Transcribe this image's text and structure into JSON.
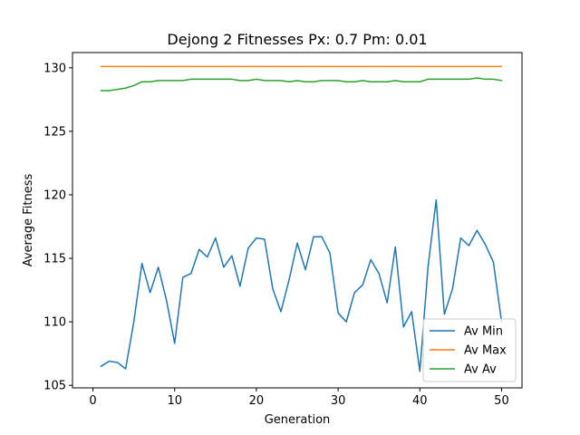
{
  "chart_data": {
    "type": "line",
    "title": "Dejong 2 Fitnesses Px: 0.7 Pm: 0.01",
    "xlabel": "Generation",
    "ylabel": "Average Fitness",
    "xlim": [
      -2.5,
      52.5
    ],
    "ylim": [
      104.8,
      131.2
    ],
    "xticks": [
      0,
      10,
      20,
      30,
      40,
      50
    ],
    "yticks": [
      105,
      110,
      115,
      120,
      125,
      130
    ],
    "legend": "lower-right",
    "x": [
      1,
      2,
      3,
      4,
      5,
      6,
      7,
      8,
      9,
      10,
      11,
      12,
      13,
      14,
      15,
      16,
      17,
      18,
      19,
      20,
      21,
      22,
      23,
      24,
      25,
      26,
      27,
      28,
      29,
      30,
      31,
      32,
      33,
      34,
      35,
      36,
      37,
      38,
      39,
      40,
      41,
      42,
      43,
      44,
      45,
      46,
      47,
      48,
      49,
      50
    ],
    "series": [
      {
        "name": "Av Min",
        "color": "#1f77b4",
        "values": [
          106.5,
          106.9,
          106.8,
          106.3,
          110.0,
          114.6,
          112.3,
          114.3,
          111.7,
          108.3,
          113.5,
          113.8,
          115.7,
          115.1,
          116.6,
          114.3,
          115.2,
          112.8,
          115.8,
          116.6,
          116.5,
          112.6,
          110.8,
          113.3,
          116.2,
          114.1,
          116.7,
          116.7,
          115.4,
          110.7,
          110.0,
          112.3,
          112.9,
          114.9,
          113.8,
          111.5,
          115.9,
          109.6,
          110.8,
          106.1,
          114.3,
          119.6,
          110.6,
          112.6,
          116.6,
          116.0,
          117.2,
          116.1,
          114.7,
          110.0
        ]
      },
      {
        "name": "Av Max",
        "color": "#ff7f0e",
        "values": [
          130.1,
          130.1,
          130.1,
          130.1,
          130.1,
          130.1,
          130.1,
          130.1,
          130.1,
          130.1,
          130.1,
          130.1,
          130.1,
          130.1,
          130.1,
          130.1,
          130.1,
          130.1,
          130.1,
          130.1,
          130.1,
          130.1,
          130.1,
          130.1,
          130.1,
          130.1,
          130.1,
          130.1,
          130.1,
          130.1,
          130.1,
          130.1,
          130.1,
          130.1,
          130.1,
          130.1,
          130.1,
          130.1,
          130.1,
          130.1,
          130.1,
          130.1,
          130.1,
          130.1,
          130.1,
          130.1,
          130.1,
          130.1,
          130.1,
          130.1
        ]
      },
      {
        "name": "Av Av",
        "color": "#2ca02c",
        "values": [
          128.2,
          128.2,
          128.3,
          128.4,
          128.6,
          128.9,
          128.9,
          129.0,
          129.0,
          129.0,
          129.0,
          129.1,
          129.1,
          129.1,
          129.1,
          129.1,
          129.1,
          129.0,
          129.0,
          129.1,
          129.0,
          129.0,
          129.0,
          128.9,
          129.0,
          128.9,
          128.9,
          129.0,
          129.0,
          129.0,
          128.9,
          128.9,
          129.0,
          128.9,
          128.9,
          128.9,
          129.0,
          128.9,
          128.9,
          128.9,
          129.1,
          129.1,
          129.1,
          129.1,
          129.1,
          129.1,
          129.2,
          129.1,
          129.1,
          129.0
        ]
      }
    ]
  }
}
